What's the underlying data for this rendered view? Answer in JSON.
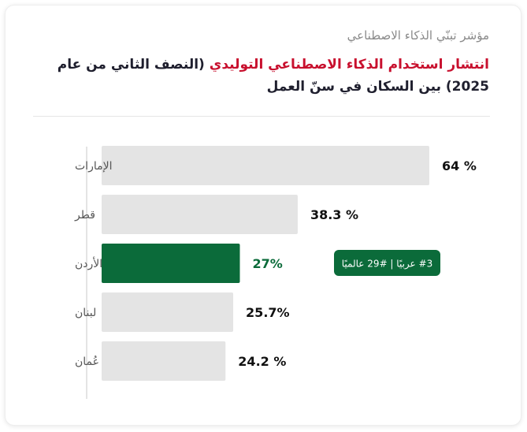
{
  "subtitle": "مؤشر تبنّي الذكاء الاصطناعي",
  "title_highlight": "انتشار استخدام الذكاء الاصطناعي التوليدي",
  "title_rest": " (النصف الثاني من عام 2025) بين السكان في سنّ العمل",
  "colors": {
    "highlight_bar": "#0b6b3a",
    "default_bar": "#e4e4e4",
    "highlight_text": "#0b6b3a",
    "value_text": "#111111",
    "category_text": "#555555"
  },
  "chart_data": {
    "type": "bar",
    "orientation": "horizontal",
    "categories": [
      "الإمارات",
      "قطر",
      "الأردن",
      "لبنان",
      "عُمان"
    ],
    "values": [
      64,
      38.3,
      27,
      25.7,
      24.2
    ],
    "value_labels": [
      "64 %",
      "38.3 %",
      "27%",
      "25.7%",
      "24.2 %"
    ],
    "highlight_index": 2,
    "highlight_badge": "#3 عربيًا | #29 عالميًا",
    "xlim": [
      0,
      100
    ],
    "grid": false
  }
}
